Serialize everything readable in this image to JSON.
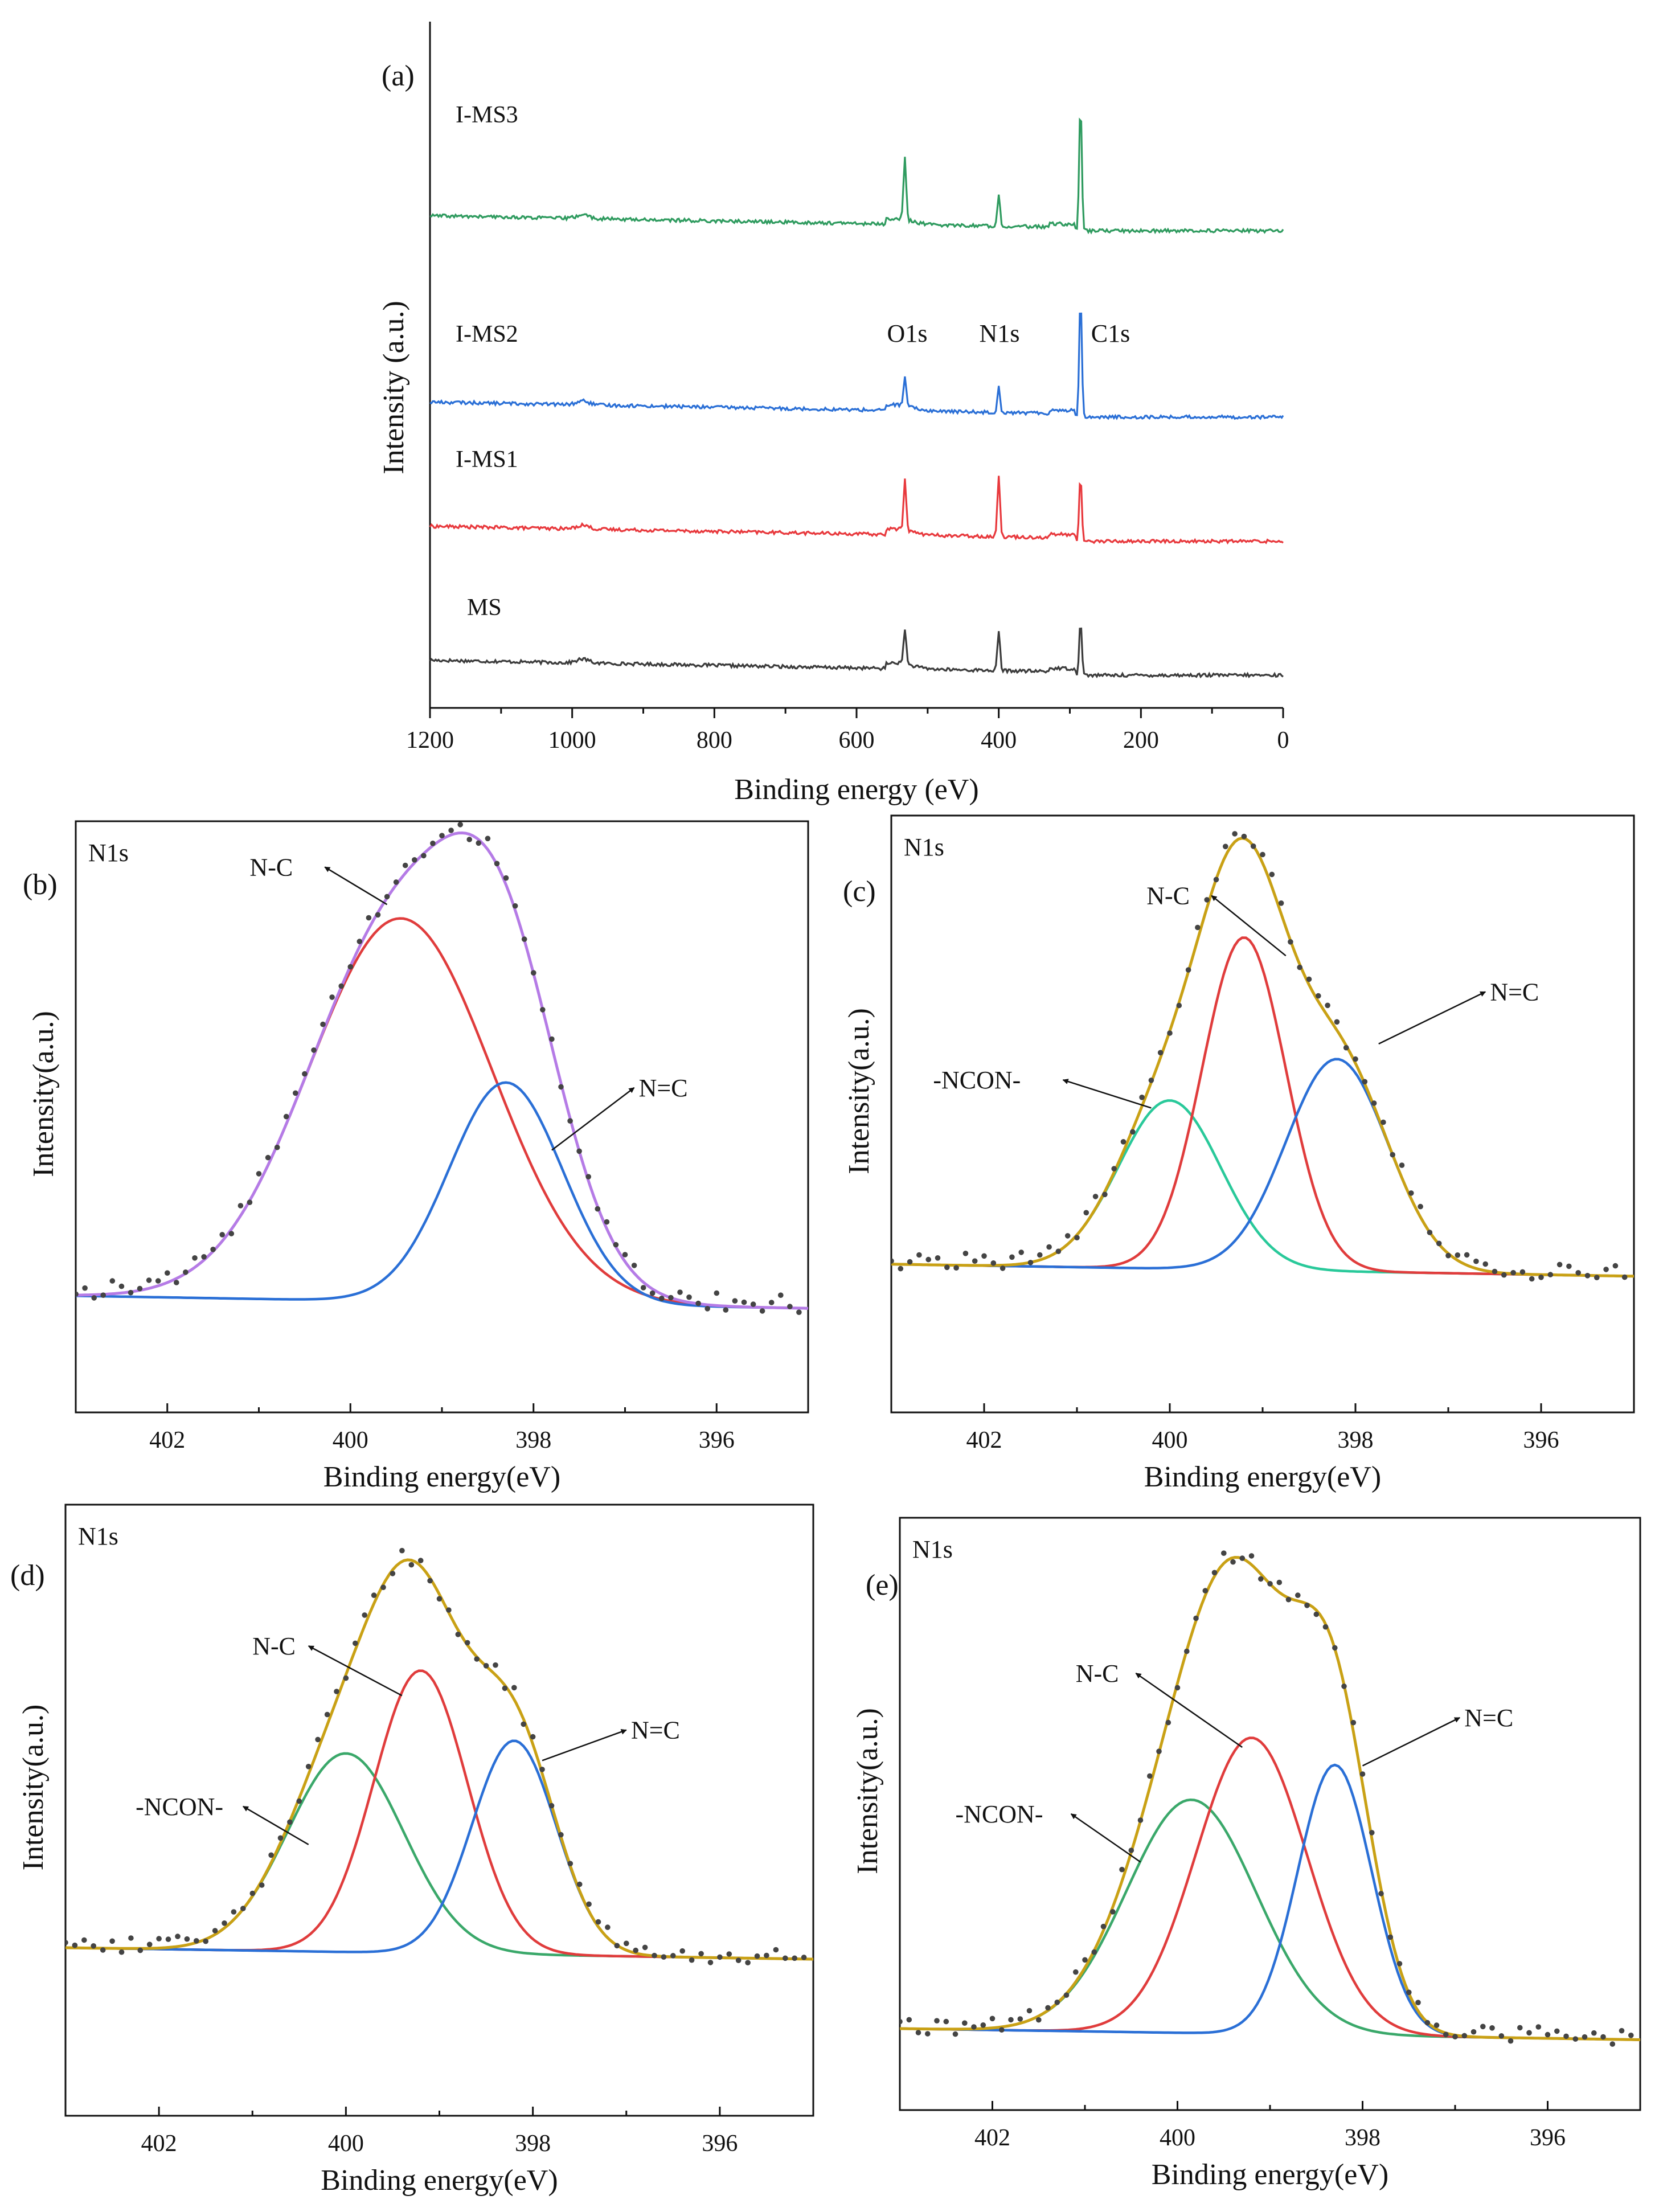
{
  "figure": {
    "panels": [
      "(a)",
      "(b)",
      "(c)",
      "(d)",
      "(e)"
    ]
  },
  "colors": {
    "MS": "#3c3c3c",
    "I-MS1": "#e8393d",
    "I-MS2": "#2a6fd6",
    "I-MS3": "#2f9b5f",
    "envelope_b": "#b57be6",
    "envelope": "#c9a115",
    "NC": "#2a6fd6",
    "NCON": "#2fb56e",
    "raw": "#444444"
  },
  "chart_data": [
    {
      "id": "a",
      "panel_label": "(a)",
      "type": "line",
      "title": "",
      "xlabel": "Binding energy (eV)",
      "ylabel": "Intensity (a.u.)",
      "xlim": [
        1200,
        0
      ],
      "x_ticks": [
        "1200",
        "1000",
        "800",
        "600",
        "400",
        "200",
        "0"
      ],
      "x_tick_values": [
        1200,
        1000,
        800,
        600,
        400,
        200,
        0
      ],
      "peak_labels": [
        {
          "text": "O1s",
          "x": 532
        },
        {
          "text": "N1s",
          "x": 400
        },
        {
          "text": "C1s",
          "x": 285
        }
      ],
      "series": [
        {
          "name": "MS",
          "label": "MS",
          "baseline": 0.5,
          "peaks": [
            {
              "x": 532,
              "h": 0.55
            },
            {
              "x": 400,
              "h": 0.6
            },
            {
              "x": 285,
              "h": 0.85
            }
          ]
        },
        {
          "name": "I-MS1",
          "label": "I-MS1",
          "baseline": 2.55,
          "peaks": [
            {
              "x": 532,
              "h": 0.8
            },
            {
              "x": 400,
              "h": 0.95
            },
            {
              "x": 285,
              "h": 1.0
            }
          ]
        },
        {
          "name": "I-MS2",
          "label": "I-MS2",
          "baseline": 4.45,
          "peaks": [
            {
              "x": 532,
              "h": 0.45
            },
            {
              "x": 400,
              "h": 0.4
            },
            {
              "x": 285,
              "h": 1.85
            }
          ]
        },
        {
          "name": "I-MS3",
          "label": "I-MS3",
          "baseline": 7.3,
          "peaks": [
            {
              "x": 532,
              "h": 0.95
            },
            {
              "x": 400,
              "h": 0.5
            },
            {
              "x": 285,
              "h": 1.95
            }
          ]
        }
      ],
      "ylim": [
        0,
        10.5
      ]
    },
    {
      "id": "b",
      "panel_label": "(b)",
      "corner_label": "N1s",
      "type": "line",
      "xlabel": "Binding energy(eV)",
      "ylabel": "Intensity(a.u.)",
      "xlim": [
        403.0,
        395.0
      ],
      "x_ticks": [
        "402",
        "400",
        "398",
        "396"
      ],
      "x_tick_values": [
        402,
        400,
        398,
        396
      ],
      "ylim": [
        -0.25,
        1.17
      ],
      "baseline_left": 0.03,
      "baseline_right": 0.0,
      "components": [
        {
          "name": "N-C",
          "center": 399.45,
          "amp": 0.92,
          "sigma": 1.0
        },
        {
          "name": "N=C",
          "center": 398.3,
          "amp": 0.53,
          "sigma": 0.62
        }
      ],
      "annotations": [
        {
          "text": "N-C",
          "arrow_from": [
            399.6,
            0.97
          ],
          "arrow_to": [
            400.28,
            1.06
          ],
          "text_at": [
            401.1,
            1.06
          ]
        },
        {
          "text": "N=C",
          "arrow_from": [
            397.8,
            0.38
          ],
          "arrow_to": [
            396.9,
            0.53
          ],
          "text_at": [
            396.85,
            0.53
          ]
        }
      ]
    },
    {
      "id": "c",
      "panel_label": "(c)",
      "corner_label": "N1s",
      "type": "line",
      "xlabel": "Binding energy(eV)",
      "ylabel": "Intensity(a.u.)",
      "xlim": [
        403.0,
        395.0
      ],
      "x_ticks": [
        "402",
        "400",
        "398",
        "396"
      ],
      "x_tick_values": [
        402,
        400,
        398,
        396
      ],
      "ylim": [
        -0.37,
        1.12
      ],
      "baseline_left": 0.0,
      "baseline_right": -0.03,
      "components": [
        {
          "name": "-NCON-",
          "center": 400.0,
          "amp": 0.42,
          "sigma": 0.55
        },
        {
          "name": "N-C",
          "center": 399.2,
          "amp": 0.83,
          "sigma": 0.45
        },
        {
          "name": "N=C",
          "center": 398.2,
          "amp": 0.53,
          "sigma": 0.55
        }
      ],
      "annotations": [
        {
          "text": "N-C",
          "arrow_from": [
            398.75,
            0.77
          ],
          "arrow_to": [
            399.55,
            0.92
          ],
          "text_at": [
            400.25,
            0.92
          ]
        },
        {
          "text": "-NCON-",
          "arrow_from": [
            400.2,
            0.39
          ],
          "arrow_to": [
            401.15,
            0.46
          ],
          "text_at": [
            402.55,
            0.46
          ]
        },
        {
          "text": "N=C",
          "arrow_from": [
            397.75,
            0.55
          ],
          "arrow_to": [
            396.6,
            0.68
          ],
          "text_at": [
            396.55,
            0.68
          ]
        }
      ]
    },
    {
      "id": "d",
      "panel_label": "(d)",
      "corner_label": "N1s",
      "type": "line",
      "xlabel": "Binding energy(eV)",
      "ylabel": "Intensity(a.u.)",
      "xlim": [
        403.0,
        395.0
      ],
      "x_ticks": [
        "402",
        "400",
        "398",
        "396"
      ],
      "x_tick_values": [
        402,
        400,
        398,
        396
      ],
      "ylim": [
        -0.44,
        1.16
      ],
      "baseline_left": 0.0,
      "baseline_right": -0.03,
      "components": [
        {
          "name": "-NCON-",
          "center": 400.0,
          "amp": 0.52,
          "sigma": 0.62
        },
        {
          "name": "N-C",
          "center": 399.2,
          "amp": 0.74,
          "sigma": 0.5
        },
        {
          "name": "N=C",
          "center": 398.2,
          "amp": 0.56,
          "sigma": 0.45
        }
      ],
      "annotations": [
        {
          "text": "N-C",
          "arrow_from": [
            399.4,
            0.66
          ],
          "arrow_to": [
            400.4,
            0.79
          ],
          "text_at": [
            401.0,
            0.79
          ]
        },
        {
          "text": "-NCON-",
          "arrow_from": [
            400.4,
            0.27
          ],
          "arrow_to": [
            401.1,
            0.37
          ],
          "text_at": [
            402.25,
            0.37
          ]
        },
        {
          "text": "N=C",
          "arrow_from": [
            397.9,
            0.49
          ],
          "arrow_to": [
            397.0,
            0.57
          ],
          "text_at": [
            396.95,
            0.57
          ]
        }
      ]
    },
    {
      "id": "e",
      "panel_label": "(e)",
      "corner_label": "N1s",
      "type": "line",
      "xlabel": "Binding energy(eV)",
      "ylabel": "Intensity(a.u.)",
      "xlim": [
        403.0,
        395.0
      ],
      "x_ticks": [
        "402",
        "400",
        "398",
        "396"
      ],
      "x_tick_values": [
        402,
        400,
        398,
        396
      ],
      "ylim": [
        -0.22,
        1.38
      ],
      "baseline_left": 0.0,
      "baseline_right": -0.03,
      "components": [
        {
          "name": "-NCON-",
          "center": 399.85,
          "amp": 0.63,
          "sigma": 0.7
        },
        {
          "name": "N-C",
          "center": 399.2,
          "amp": 0.8,
          "sigma": 0.6
        },
        {
          "name": "N=C",
          "center": 398.3,
          "amp": 0.73,
          "sigma": 0.4
        }
      ],
      "annotations": [
        {
          "text": "N-C",
          "arrow_from": [
            399.3,
            0.76
          ],
          "arrow_to": [
            400.45,
            0.96
          ],
          "text_at": [
            401.1,
            0.96
          ]
        },
        {
          "text": "-NCON-",
          "arrow_from": [
            400.4,
            0.45
          ],
          "arrow_to": [
            401.15,
            0.58
          ],
          "text_at": [
            402.4,
            0.58
          ]
        },
        {
          "text": "N=C",
          "arrow_from": [
            398.0,
            0.71
          ],
          "arrow_to": [
            396.95,
            0.84
          ],
          "text_at": [
            396.9,
            0.84
          ]
        }
      ]
    }
  ]
}
